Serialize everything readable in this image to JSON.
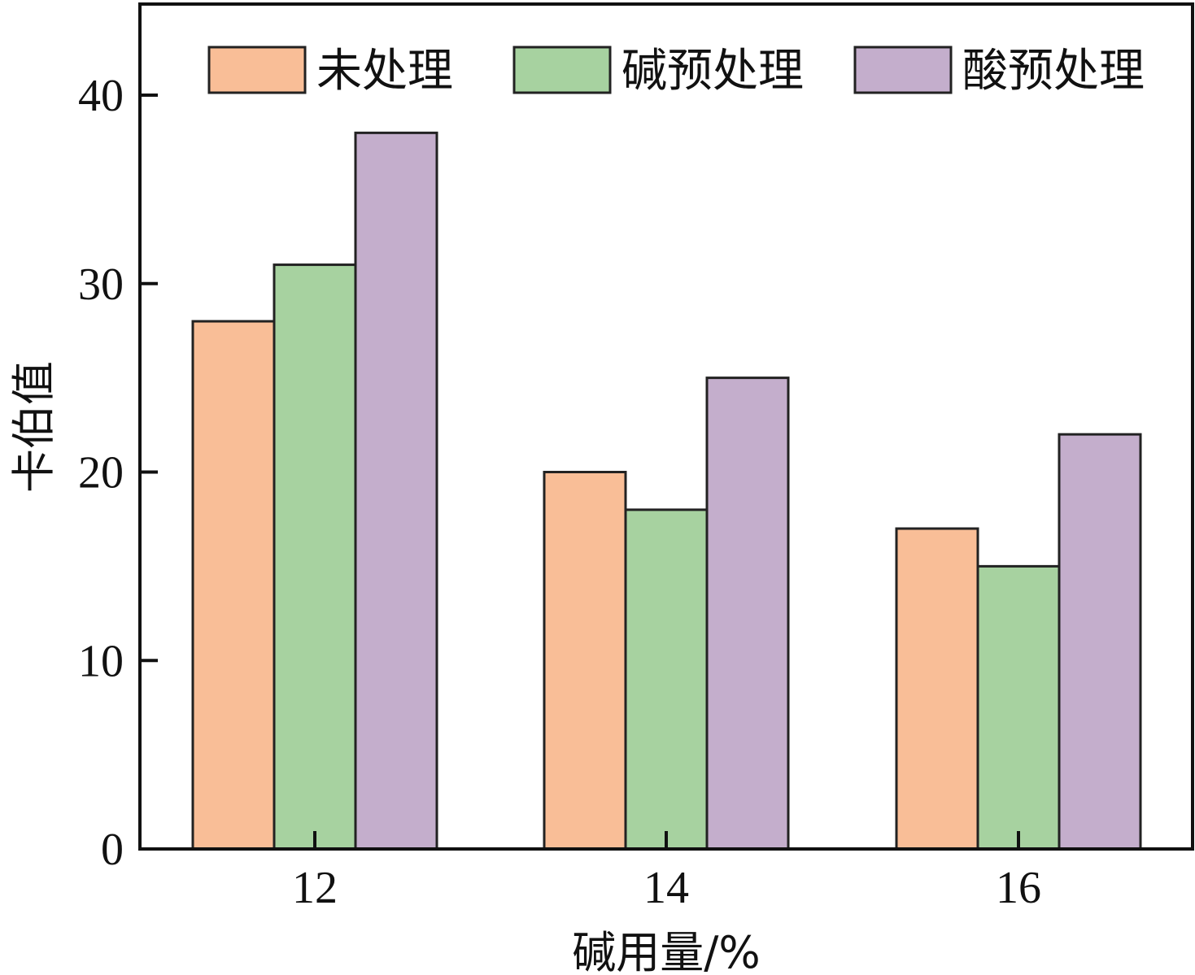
{
  "chart_data": {
    "type": "bar",
    "title": "",
    "xlabel": "碱用量/%",
    "ylabel": "卡伯值",
    "categories": [
      "12",
      "14",
      "16"
    ],
    "series": [
      {
        "name": "未处理",
        "values": [
          28,
          20,
          17
        ],
        "color": "#F9BE97"
      },
      {
        "name": "碱预处理",
        "values": [
          31,
          18,
          15
        ],
        "color": "#A7D2A0"
      },
      {
        "name": "酸预处理",
        "values": [
          38,
          25,
          22
        ],
        "color": "#C4AECC"
      }
    ],
    "ylim": [
      0,
      40
    ],
    "yticks": [
      0,
      10,
      20,
      30,
      40
    ],
    "grid": false,
    "legend_position": "top"
  }
}
